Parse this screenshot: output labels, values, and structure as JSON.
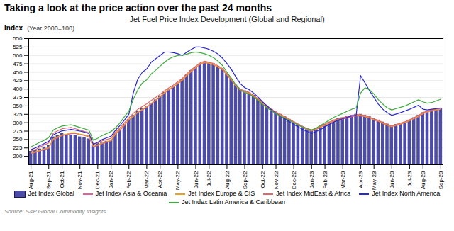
{
  "chart_data": {
    "type": "bar",
    "title": "Taking a look at the price action over the past 24 months",
    "subtitle": "Jet Fuel Price Index Development (Global and Regional)",
    "ylabel": "Index",
    "annotations": [
      "(Year 2000=100)"
    ],
    "caption": "Source: S&P Global Commodity Insights",
    "categories": [
      "Aug-21",
      null,
      null,
      null,
      "Sep-21",
      null,
      null,
      "Oct-21",
      null,
      null,
      null,
      "Nov-21",
      null,
      null,
      null,
      "Dec-21",
      null,
      null,
      "Jan-22",
      null,
      null,
      null,
      "Feb-22",
      null,
      null,
      null,
      "Mar-22",
      null,
      null,
      "Apr-22",
      null,
      null,
      null,
      "May-22",
      null,
      null,
      null,
      "Jun-22",
      null,
      null,
      "Jul-22",
      null,
      null,
      null,
      "Aug-22",
      null,
      null,
      null,
      "Sep-22",
      null,
      null,
      null,
      "Oct-22",
      null,
      null,
      "Nov-22",
      null,
      null,
      null,
      "Dec-22",
      null,
      null,
      null,
      "Jan-23",
      null,
      null,
      "Feb-23",
      null,
      null,
      null,
      "Mar-23",
      null,
      null,
      null,
      "Apr-23",
      null,
      null,
      "May-23",
      null,
      null,
      null,
      "Jun-23",
      null,
      null,
      null,
      "Jul-23",
      null,
      null,
      "Aug-23",
      null,
      null,
      null,
      "Sep-23"
    ],
    "series": [
      {
        "name": "Jet Index Global",
        "type": "bar",
        "color": "#4c4ca8",
        "values": [
          215,
          218,
          222,
          228,
          232,
          258,
          262,
          268,
          265,
          264,
          262,
          258,
          255,
          252,
          232,
          238,
          242,
          245,
          248,
          268,
          280,
          295,
          310,
          322,
          335,
          342,
          348,
          358,
          368,
          378,
          390,
          400,
          408,
          418,
          428,
          442,
          455,
          465,
          475,
          480,
          478,
          475,
          468,
          460,
          445,
          430,
          412,
          400,
          395,
          390,
          382,
          372,
          360,
          350,
          340,
          332,
          325,
          318,
          310,
          302,
          295,
          288,
          282,
          278,
          282,
          288,
          295,
          302,
          308,
          312,
          315,
          318,
          322,
          325,
          325,
          322,
          318,
          312,
          308,
          302,
          296,
          292,
          295,
          298,
          302,
          308,
          315,
          322,
          330,
          335,
          338,
          340,
          342
        ]
      },
      {
        "name": "Jet Index Asia & Oceania",
        "type": "line",
        "color": "#e060a0",
        "values": [
          208,
          212,
          216,
          220,
          224,
          250,
          255,
          262,
          264,
          268,
          268,
          265,
          262,
          258,
          228,
          232,
          238,
          242,
          246,
          266,
          278,
          292,
          308,
          318,
          330,
          338,
          346,
          356,
          366,
          376,
          388,
          398,
          406,
          416,
          426,
          440,
          452,
          462,
          474,
          478,
          476,
          472,
          465,
          458,
          442,
          426,
          408,
          396,
          390,
          386,
          378,
          368,
          356,
          346,
          336,
          328,
          322,
          315,
          308,
          300,
          293,
          286,
          280,
          276,
          280,
          286,
          292,
          298,
          304,
          308,
          311,
          314,
          318,
          320,
          320,
          318,
          314,
          308,
          304,
          298,
          292,
          288,
          292,
          296,
          300,
          306,
          312,
          318,
          326,
          332,
          335,
          338,
          340
        ]
      },
      {
        "name": "Jet Index Europe & CIS",
        "type": "line",
        "color": "#e8a020",
        "values": [
          210,
          214,
          218,
          222,
          226,
          252,
          258,
          264,
          266,
          270,
          270,
          266,
          264,
          260,
          230,
          234,
          240,
          244,
          248,
          268,
          280,
          295,
          310,
          320,
          332,
          340,
          348,
          358,
          368,
          378,
          390,
          400,
          408,
          418,
          428,
          442,
          454,
          464,
          475,
          480,
          477,
          473,
          466,
          458,
          443,
          428,
          410,
          398,
          392,
          388,
          380,
          369,
          358,
          348,
          337,
          329,
          323,
          316,
          309,
          301,
          294,
          287,
          281,
          277,
          281,
          287,
          293,
          300,
          306,
          310,
          313,
          316,
          320,
          322,
          322,
          319,
          315,
          309,
          305,
          299,
          293,
          289,
          293,
          297,
          301,
          307,
          313,
          320,
          328,
          333,
          336,
          339,
          341
        ]
      },
      {
        "name": "Jet Index MidEast & Africa",
        "type": "line",
        "color": "#e06868",
        "values": [
          216,
          220,
          228,
          234,
          240,
          268,
          276,
          282,
          284,
          286,
          282,
          278,
          274,
          270,
          235,
          240,
          246,
          250,
          254,
          272,
          285,
          300,
          315,
          328,
          340,
          348,
          356,
          366,
          375,
          384,
          395,
          404,
          412,
          422,
          432,
          446,
          458,
          468,
          478,
          483,
          480,
          476,
          469,
          461,
          446,
          430,
          412,
          400,
          394,
          390,
          381,
          371,
          360,
          350,
          340,
          332,
          325,
          318,
          311,
          303,
          296,
          289,
          283,
          279,
          283,
          289,
          296,
          302,
          308,
          312,
          315,
          318,
          322,
          324,
          324,
          321,
          317,
          311,
          307,
          301,
          295,
          291,
          295,
          299,
          303,
          309,
          315,
          322,
          330,
          335,
          338,
          341,
          343
        ]
      },
      {
        "name": "Jet Index North America",
        "type": "line",
        "color": "#2828cc",
        "values": [
          220,
          225,
          232,
          238,
          245,
          264,
          270,
          276,
          278,
          280,
          278,
          275,
          272,
          268,
          236,
          242,
          250,
          255,
          260,
          278,
          292,
          308,
          326,
          390,
          430,
          450,
          460,
          480,
          490,
          500,
          510,
          510,
          508,
          505,
          500,
          510,
          518,
          525,
          525,
          522,
          518,
          512,
          504,
          492,
          476,
          458,
          436,
          416,
          404,
          398,
          388,
          376,
          362,
          350,
          338,
          328,
          320,
          312,
          303,
          295,
          287,
          280,
          274,
          268,
          274,
          280,
          288,
          295,
          302,
          308,
          312,
          316,
          320,
          322,
          440,
          418,
          395,
          375,
          355,
          340,
          330,
          322,
          326,
          330,
          335,
          340,
          346,
          352,
          340,
          338,
          340,
          342,
          344
        ]
      },
      {
        "name": "Jet Index Latin America & Caribbean",
        "type": "line",
        "color": "#40aa40",
        "values": [
          228,
          235,
          242,
          248,
          256,
          278,
          285,
          290,
          292,
          294,
          290,
          286,
          282,
          278,
          248,
          254,
          262,
          268,
          274,
          285,
          300,
          318,
          335,
          370,
          398,
          418,
          428,
          445,
          456,
          468,
          480,
          490,
          496,
          500,
          500,
          504,
          508,
          510,
          508,
          505,
          500,
          493,
          483,
          470,
          450,
          432,
          412,
          398,
          390,
          385,
          376,
          366,
          354,
          344,
          335,
          327,
          320,
          314,
          307,
          300,
          293,
          287,
          282,
          278,
          284,
          292,
          300,
          308,
          316,
          322,
          328,
          334,
          340,
          344,
          388,
          404,
          398,
          385,
          368,
          355,
          344,
          338,
          342,
          346,
          350,
          356,
          362,
          368,
          362,
          358,
          360,
          365,
          370
        ]
      }
    ],
    "ylim": [
      175,
      550
    ],
    "yticks": [
      200,
      225,
      250,
      275,
      300,
      325,
      350,
      375,
      400,
      425,
      450,
      475,
      500,
      525,
      550
    ],
    "grid": true,
    "legend": "bottom"
  }
}
